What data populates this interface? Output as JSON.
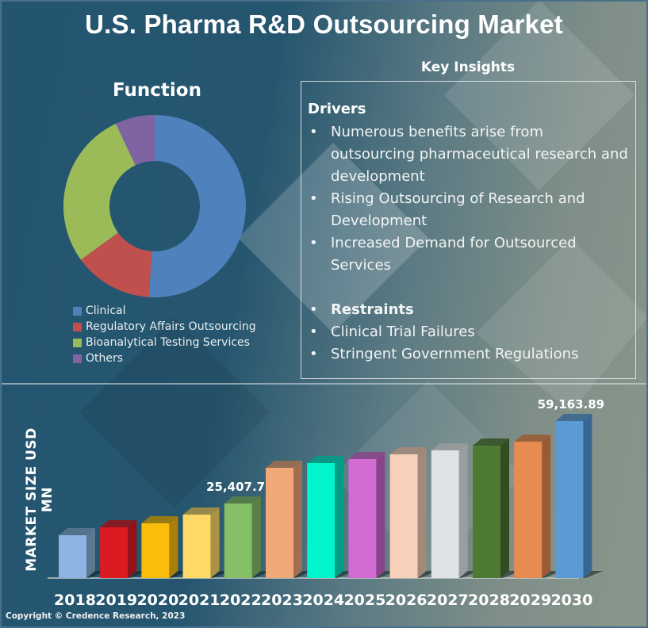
{
  "title": "U.S. Pharma R&D Outsourcing Market",
  "function_panel": {
    "title": "Function",
    "legend": [
      {
        "label": "Clinical",
        "color": "#4f81bd"
      },
      {
        "label": "Regulatory Affairs Outsourcing",
        "color": "#c0504d"
      },
      {
        "label": "Bioanalytical Testing Services",
        "color": "#9bbb59"
      },
      {
        "label": "Others",
        "color": "#8064a2"
      }
    ]
  },
  "key_insights": {
    "title": "Key Insights",
    "drivers_heading": "Drivers",
    "drivers": [
      "Numerous benefits arise from outsourcing pharmaceutical research and development",
      "Rising Outsourcing of Research and Development",
      "Increased Demand for Outsourced Services"
    ],
    "restraints_heading": "Restraints",
    "restraints": [
      "Clinical Trial Failures",
      "Stringent Government Regulations"
    ],
    "bullet": "•"
  },
  "bar_panel": {
    "ylabel": "MARKET SIZE USD MN"
  },
  "copyright": "Copyright © Credence Research, 2023",
  "chart_data": [
    {
      "type": "pie",
      "variant": "donut",
      "title": "Function",
      "categories": [
        "Clinical",
        "Regulatory Affairs Outsourcing",
        "Bioanalytical Testing Services",
        "Others"
      ],
      "values": [
        51,
        14,
        28,
        7
      ],
      "units": "percent (estimated)",
      "colors": [
        "#4f81bd",
        "#c0504d",
        "#9bbb59",
        "#8064a2"
      ],
      "legend": "bottom-left"
    },
    {
      "type": "bar",
      "style": "3d",
      "title": "",
      "xlabel": "",
      "ylabel": "MARKET SIZE USD MN",
      "categories": [
        "2018",
        "2019",
        "2020",
        "2021",
        "2022",
        "2023",
        "2024",
        "2025",
        "2026",
        "2027",
        "2028",
        "2029",
        "2030"
      ],
      "values": [
        12425,
        15670,
        17297,
        20865,
        25407.75,
        40016,
        41964,
        43587,
        45535,
        47158,
        49105,
        50728,
        59163.89
      ],
      "data_labels": {
        "2022": "25,407.75",
        "2030": "59,163.89"
      },
      "colors": [
        "#8db4e2",
        "#dc1a22",
        "#fbbd0b",
        "#ffd966",
        "#86c066",
        "#f0a878",
        "#00f5cc",
        "#d26cd2",
        "#f6d0b8",
        "#e0e3e5",
        "#4f7a34",
        "#e88b50",
        "#5b9bd5"
      ],
      "side_colors": [
        "#5c7891",
        "#941217",
        "#a98007",
        "#ab9245",
        "#5a8144",
        "#a06f50",
        "#009e86",
        "#8a458a",
        "#a3897a",
        "#9a9c9e",
        "#324d21",
        "#9a5a34",
        "#386690"
      ],
      "grid": false
    }
  ]
}
